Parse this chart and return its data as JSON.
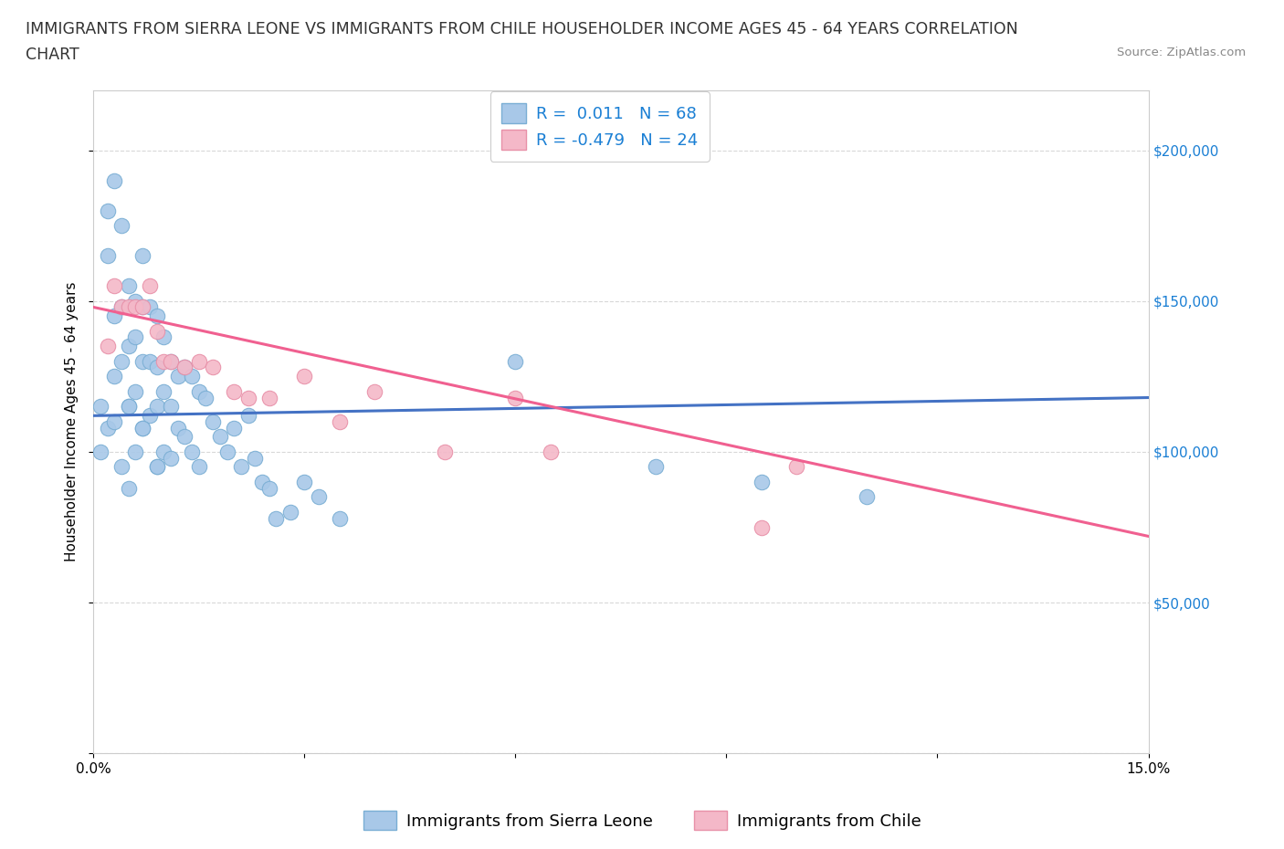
{
  "title_line1": "IMMIGRANTS FROM SIERRA LEONE VS IMMIGRANTS FROM CHILE HOUSEHOLDER INCOME AGES 45 - 64 YEARS CORRELATION",
  "title_line2": "CHART",
  "source_text": "Source: ZipAtlas.com",
  "ylabel": "Householder Income Ages 45 - 64 years",
  "xlim": [
    0.0,
    0.15
  ],
  "ylim": [
    0,
    220000
  ],
  "yticks": [
    0,
    50000,
    100000,
    150000,
    200000
  ],
  "ytick_labels": [
    "",
    "$50,000",
    "$100,000",
    "$150,000",
    "$200,000"
  ],
  "xticks": [
    0.0,
    0.03,
    0.06,
    0.09,
    0.12,
    0.15
  ],
  "xtick_labels": [
    "0.0%",
    "",
    "",
    "",
    "",
    "15.0%"
  ],
  "sierra_leone_color": "#a8c8e8",
  "sierra_leone_edge": "#7aaed4",
  "chile_color": "#f4b8c8",
  "chile_edge": "#e890a8",
  "sierra_leone_line_color": "#4472c4",
  "chile_line_color": "#f06090",
  "R_sierra_leone": 0.011,
  "N_sierra_leone": 68,
  "R_chile": -0.479,
  "N_chile": 24,
  "legend_text_color": "#1a7fd4",
  "background_color": "#ffffff",
  "grid_color": "#d8d8d8",
  "title_fontsize": 12.5,
  "axis_label_fontsize": 11,
  "tick_fontsize": 11,
  "legend_fontsize": 13,
  "sierra_leone_scatter_x": [
    0.001,
    0.001,
    0.002,
    0.002,
    0.002,
    0.003,
    0.003,
    0.003,
    0.004,
    0.004,
    0.004,
    0.004,
    0.005,
    0.005,
    0.005,
    0.005,
    0.006,
    0.006,
    0.006,
    0.006,
    0.007,
    0.007,
    0.007,
    0.007,
    0.008,
    0.008,
    0.008,
    0.009,
    0.009,
    0.009,
    0.009,
    0.01,
    0.01,
    0.01,
    0.011,
    0.011,
    0.011,
    0.012,
    0.012,
    0.013,
    0.013,
    0.014,
    0.014,
    0.015,
    0.015,
    0.016,
    0.017,
    0.018,
    0.019,
    0.02,
    0.021,
    0.022,
    0.023,
    0.024,
    0.025,
    0.026,
    0.028,
    0.03,
    0.032,
    0.035,
    0.003,
    0.005,
    0.007,
    0.009,
    0.06,
    0.08,
    0.095,
    0.11
  ],
  "sierra_leone_scatter_y": [
    115000,
    100000,
    180000,
    165000,
    108000,
    190000,
    145000,
    110000,
    175000,
    148000,
    130000,
    95000,
    155000,
    135000,
    115000,
    88000,
    150000,
    138000,
    120000,
    100000,
    165000,
    148000,
    130000,
    108000,
    148000,
    130000,
    112000,
    145000,
    128000,
    115000,
    95000,
    138000,
    120000,
    100000,
    130000,
    115000,
    98000,
    125000,
    108000,
    128000,
    105000,
    125000,
    100000,
    120000,
    95000,
    118000,
    110000,
    105000,
    100000,
    108000,
    95000,
    112000,
    98000,
    90000,
    88000,
    78000,
    80000,
    90000,
    85000,
    78000,
    125000,
    115000,
    108000,
    95000,
    130000,
    95000,
    90000,
    85000
  ],
  "chile_scatter_x": [
    0.002,
    0.003,
    0.004,
    0.005,
    0.006,
    0.007,
    0.008,
    0.009,
    0.01,
    0.011,
    0.013,
    0.015,
    0.017,
    0.02,
    0.022,
    0.025,
    0.03,
    0.035,
    0.04,
    0.05,
    0.065,
    0.06,
    0.095,
    0.1
  ],
  "chile_scatter_y": [
    135000,
    155000,
    148000,
    148000,
    148000,
    148000,
    155000,
    140000,
    130000,
    130000,
    128000,
    130000,
    128000,
    120000,
    118000,
    118000,
    125000,
    110000,
    120000,
    100000,
    100000,
    118000,
    75000,
    95000
  ],
  "sl_trend_x0": 0.0,
  "sl_trend_x1": 0.15,
  "sl_trend_y0": 112000,
  "sl_trend_y1": 118000,
  "ch_trend_x0": 0.0,
  "ch_trend_x1": 0.15,
  "ch_trend_y0": 148000,
  "ch_trend_y1": 72000
}
